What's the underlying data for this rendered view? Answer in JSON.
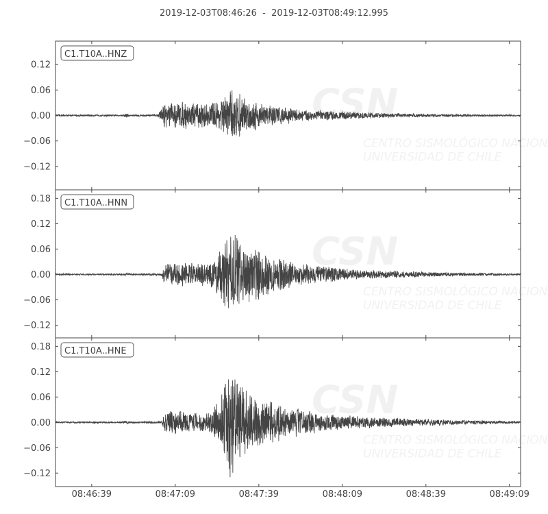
{
  "chart_data": {
    "type": "line",
    "title": "2019-12-03T08:46:26  -  2019-12-03T08:49:12.995",
    "start_time": "08:46:26",
    "end_time": "08:49:12.995",
    "x_ticks": [
      "08:46:39",
      "08:47:09",
      "08:47:39",
      "08:48:09",
      "08:48:39",
      "08:49:09"
    ],
    "x_tick_seconds_from_start": [
      13,
      43,
      73,
      103,
      133,
      163
    ],
    "line_color": "#444444",
    "grid": false,
    "watermark": {
      "logo": "CSN",
      "line1": "CENTRO SISMOLÓGICO NACIONAL",
      "line2": "UNIVERSIDAD DE CHILE"
    },
    "traces": [
      {
        "label": "C1.T10A..HNZ",
        "ylim": [
          -0.175,
          0.175
        ],
        "y_ticks": [
          "0.12",
          "0.06",
          "0.00",
          "−0.06",
          "−0.12"
        ],
        "y_tick_values": [
          0.12,
          0.06,
          0,
          -0.06,
          -0.12
        ],
        "envelope_seconds_amplitude": [
          [
            0,
            0.002
          ],
          [
            24,
            0.002
          ],
          [
            25.5,
            0.006
          ],
          [
            27,
            0.002
          ],
          [
            37,
            0.003
          ],
          [
            38.5,
            0.03
          ],
          [
            45,
            0.035
          ],
          [
            55,
            0.03
          ],
          [
            60,
            0.045
          ],
          [
            63.5,
            0.065
          ],
          [
            68,
            0.045
          ],
          [
            75,
            0.03
          ],
          [
            88,
            0.015
          ],
          [
            110,
            0.008
          ],
          [
            127,
            0.005
          ],
          [
            145,
            0.003
          ],
          [
            167,
            0.002
          ]
        ]
      },
      {
        "label": "C1.T10A..HNN",
        "ylim": [
          -0.15,
          0.2
        ],
        "y_ticks": [
          "0.18",
          "0.12",
          "0.06",
          "0.00",
          "−0.06",
          "−0.12"
        ],
        "y_tick_values": [
          0.18,
          0.12,
          0.06,
          0,
          -0.06,
          -0.12
        ],
        "envelope_seconds_amplitude": [
          [
            0,
            0.002
          ],
          [
            24,
            0.002
          ],
          [
            25.5,
            0.004
          ],
          [
            27,
            0.002
          ],
          [
            38,
            0.003
          ],
          [
            39.5,
            0.03
          ],
          [
            55,
            0.03
          ],
          [
            59,
            0.06
          ],
          [
            63.5,
            0.12
          ],
          [
            66,
            0.09
          ],
          [
            70,
            0.07
          ],
          [
            78,
            0.05
          ],
          [
            86,
            0.03
          ],
          [
            108,
            0.012
          ],
          [
            140,
            0.005
          ],
          [
            167,
            0.002
          ]
        ]
      },
      {
        "label": "C1.T10A..HNE",
        "ylim": [
          -0.152,
          0.2
        ],
        "y_ticks": [
          "0.18",
          "0.12",
          "0.06",
          "0.00",
          "−0.06",
          "−0.12"
        ],
        "y_tick_values": [
          0.18,
          0.12,
          0.06,
          0,
          -0.06,
          -0.12
        ],
        "envelope_seconds_amplitude": [
          [
            0,
            0.002
          ],
          [
            24,
            0.002
          ],
          [
            25.5,
            0.005
          ],
          [
            27,
            0.002
          ],
          [
            38,
            0.003
          ],
          [
            39.5,
            0.03
          ],
          [
            55,
            0.025
          ],
          [
            59,
            0.06
          ],
          [
            63,
            0.155
          ],
          [
            65,
            0.1
          ],
          [
            68,
            0.08
          ],
          [
            78,
            0.05
          ],
          [
            98,
            0.02
          ],
          [
            127,
            0.01
          ],
          [
            150,
            0.005
          ],
          [
            167,
            0.003
          ]
        ]
      }
    ]
  }
}
